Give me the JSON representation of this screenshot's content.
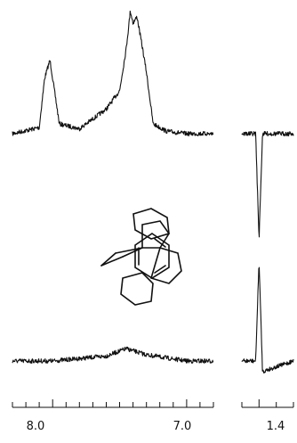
{
  "chart_data": {
    "type": "line",
    "title": "",
    "xlabel": "",
    "ylabel": "",
    "x_axis": {
      "unit": "ppm",
      "inverted": true,
      "aromatic_range": [
        8.3,
        6.8
      ],
      "aliphatic_range": [
        1.45,
        1.3
      ],
      "tick_labels": [
        "8.0",
        "7.0",
        "1.4"
      ]
    },
    "series": [
      {
        "region": "aromatic",
        "trace": "upper",
        "x": [
          8.3,
          8.1,
          8.06,
          8.02,
          8.0,
          7.95,
          7.8,
          7.6,
          7.5,
          7.45,
          7.42,
          7.4,
          7.37,
          7.33,
          7.3,
          7.25,
          7.15,
          7.0,
          6.8
        ],
        "y": [
          0.0,
          0.05,
          0.45,
          0.6,
          0.45,
          0.08,
          0.04,
          0.2,
          0.35,
          0.7,
          1.0,
          0.9,
          0.95,
          0.7,
          0.5,
          0.08,
          0.02,
          0.0,
          0.0
        ]
      },
      {
        "region": "aromatic",
        "trace": "lower",
        "x": [
          8.3,
          8.0,
          7.6,
          7.45,
          7.3,
          7.0,
          6.8
        ],
        "y": [
          0.0,
          0.0,
          0.04,
          0.1,
          0.05,
          0.0,
          0.0
        ]
      },
      {
        "region": "aliphatic",
        "trace": "upper",
        "x": [
          1.45,
          1.41,
          1.4,
          1.39,
          1.3
        ],
        "y": [
          0.0,
          0.0,
          -1.0,
          0.0,
          0.0
        ]
      },
      {
        "region": "aliphatic",
        "trace": "lower",
        "x": [
          1.45,
          1.41,
          1.4,
          1.39,
          1.3
        ],
        "y": [
          0.0,
          0.0,
          0.95,
          -0.1,
          0.0
        ]
      }
    ],
    "grid": false,
    "legend": "none"
  }
}
